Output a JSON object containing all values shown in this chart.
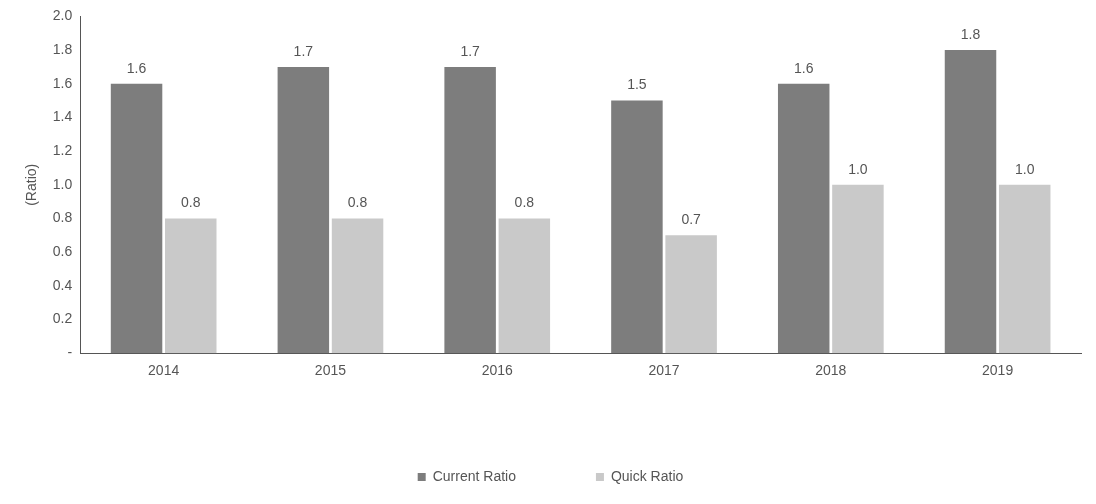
{
  "chart_data": {
    "type": "bar",
    "ylabel": "(Ratio)",
    "categories": [
      "2014",
      "2015",
      "2016",
      "2017",
      "2018",
      "2019"
    ],
    "series": [
      {
        "name": "Current Ratio",
        "color": "#7d7d7d",
        "values": [
          1.6,
          1.7,
          1.7,
          1.5,
          1.6,
          1.8
        ],
        "value_labels": [
          "1.6",
          "1.7",
          "1.7",
          "1.5",
          "1.6",
          "1.8"
        ]
      },
      {
        "name": "Quick Ratio",
        "color": "#c9c9c9",
        "values": [
          0.8,
          0.8,
          0.8,
          0.7,
          1.0,
          1.0
        ],
        "value_labels": [
          "0.8",
          "0.8",
          "0.8",
          "0.7",
          "1.0",
          "1.0"
        ]
      }
    ],
    "ylim": [
      0,
      2.0
    ],
    "yticks": [
      {
        "value": 0,
        "label": "-"
      },
      {
        "value": 0.2,
        "label": "0.2"
      },
      {
        "value": 0.4,
        "label": "0.4"
      },
      {
        "value": 0.6,
        "label": "0.6"
      },
      {
        "value": 0.8,
        "label": "0.8"
      },
      {
        "value": 1.0,
        "label": "1.0"
      },
      {
        "value": 1.2,
        "label": "1.2"
      },
      {
        "value": 1.4,
        "label": "1.4"
      },
      {
        "value": 1.6,
        "label": "1.6"
      },
      {
        "value": 1.8,
        "label": "1.8"
      },
      {
        "value": 2.0,
        "label": "2.0"
      }
    ],
    "legend": "bottom"
  }
}
